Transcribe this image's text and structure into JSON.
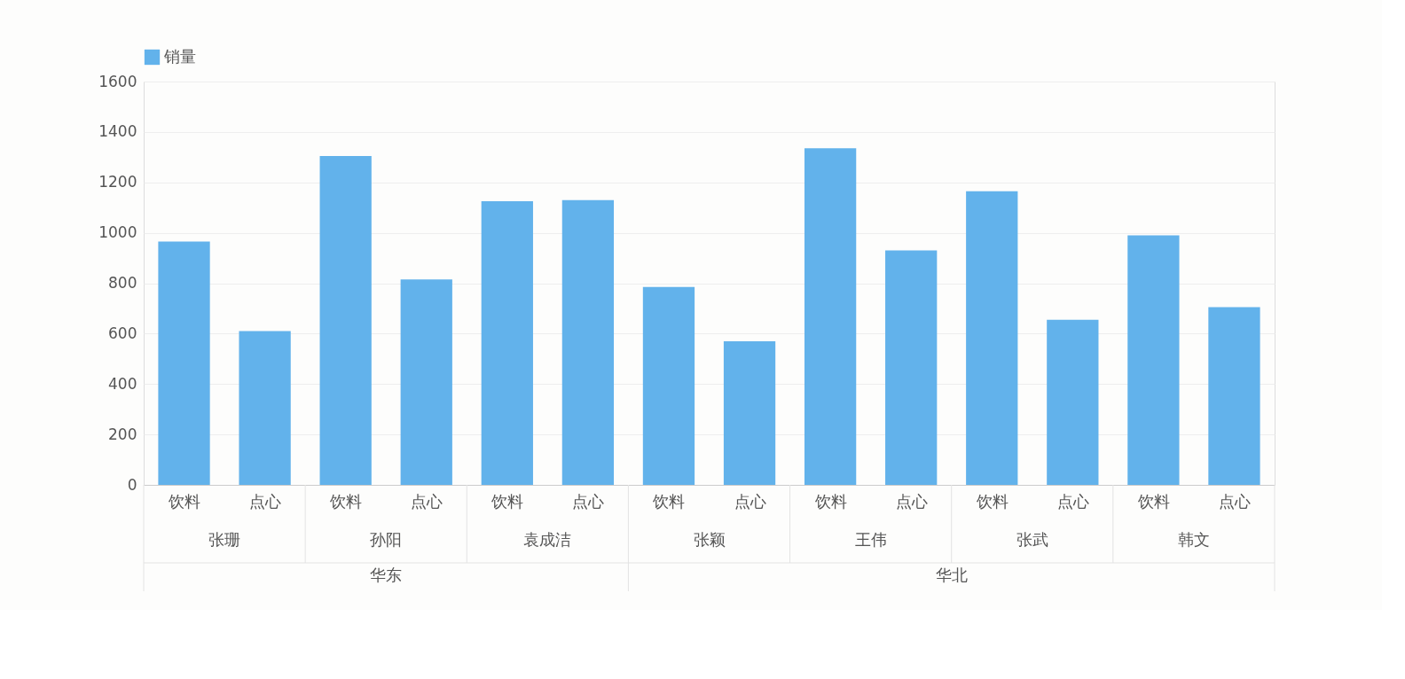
{
  "chart_data": {
    "type": "bar",
    "categories": [
      "饮料",
      "点心",
      "饮料",
      "点心",
      "饮料",
      "点心",
      "饮料",
      "点心",
      "饮料",
      "点心",
      "饮料",
      "点心",
      "饮料",
      "点心"
    ],
    "series": [
      {
        "name": "销量",
        "color": "#62b2eb",
        "values": [
          965,
          610,
          1305,
          815,
          1125,
          1130,
          785,
          570,
          1335,
          930,
          1165,
          655,
          990,
          705
        ]
      }
    ],
    "annotations": [
      "张珊",
      "孙阳",
      "袁成洁",
      "张颖",
      "王伟",
      "张武",
      "韩文",
      "华东",
      "华北"
    ],
    "ylim": [
      0,
      1600
    ],
    "yticks": [
      0,
      200,
      400,
      600,
      800,
      1000,
      1200,
      1400,
      1600
    ],
    "grid": "y",
    "legend": "top"
  }
}
